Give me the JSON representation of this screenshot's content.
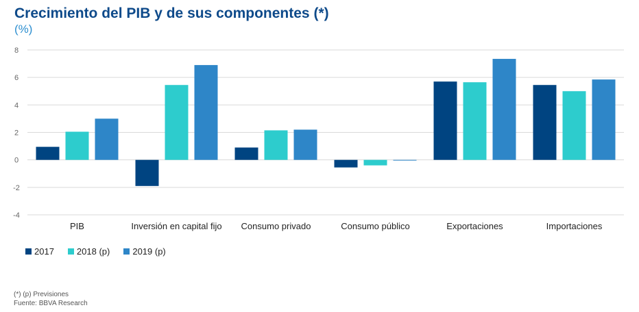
{
  "title": "Crecimiento del PIB y de sus componentes (*)",
  "subtitle": "(%)",
  "chart_data": {
    "type": "bar",
    "categories": [
      "PIB",
      "Inversión en capital fijo",
      "Consumo privado",
      "Consumo público",
      "Exportaciones",
      "Importaciones"
    ],
    "series": [
      {
        "name": "2017",
        "values": [
          0.95,
          -1.9,
          0.9,
          -0.55,
          5.7,
          5.45
        ],
        "color": "#004481"
      },
      {
        "name": "2018 (p)",
        "values": [
          2.05,
          5.45,
          2.15,
          -0.4,
          5.65,
          5.0
        ],
        "color": "#2dcccd"
      },
      {
        "name": "2019 (p)",
        "values": [
          3.0,
          6.9,
          2.2,
          -0.05,
          7.35,
          5.85
        ],
        "color": "#2e86c8"
      }
    ],
    "ylim": [
      -4,
      8
    ],
    "yticks": [
      -4,
      -2,
      0,
      2,
      4,
      6,
      8
    ],
    "grid": true,
    "legend": "bottom-left"
  },
  "footnotes": {
    "note": "(*) (p) Previsiones",
    "source": "Fuente: BBVA Research"
  }
}
